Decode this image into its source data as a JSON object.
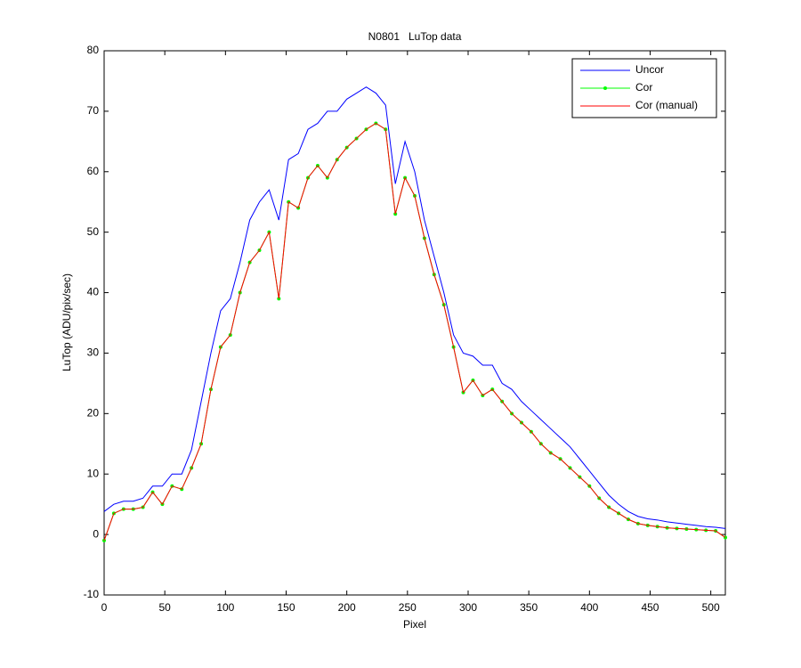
{
  "chart_data": {
    "type": "line",
    "title": "N0801   LuTop data",
    "x_label": "Pixel",
    "y_label": "LuTop (ADU/pix/sec)",
    "x": [
      0,
      8,
      16,
      24,
      32,
      40,
      48,
      56,
      64,
      72,
      80,
      88,
      96,
      104,
      112,
      120,
      128,
      136,
      144,
      152,
      160,
      168,
      176,
      184,
      192,
      200,
      208,
      216,
      224,
      232,
      240,
      248,
      256,
      264,
      272,
      280,
      288,
      296,
      304,
      312,
      320,
      328,
      336,
      344,
      352,
      360,
      368,
      376,
      384,
      392,
      400,
      408,
      416,
      424,
      432,
      440,
      448,
      456,
      464,
      472,
      480,
      488,
      496,
      504,
      512
    ],
    "series": [
      {
        "name": "Uncor",
        "color": "#0000ff",
        "marker": false,
        "values": [
          3.8,
          5,
          5.5,
          5.5,
          6,
          8,
          8,
          10,
          10,
          14,
          22,
          30,
          37,
          39,
          45,
          52,
          55,
          57,
          52,
          62,
          63,
          67,
          68,
          70,
          70,
          72,
          73,
          74,
          73,
          71,
          58,
          65,
          60,
          52,
          46,
          40,
          33,
          30,
          29.5,
          28,
          28,
          25,
          24,
          22,
          20.5,
          19,
          17.5,
          16,
          14.5,
          12.5,
          10.5,
          8.5,
          6.5,
          5,
          3.8,
          3,
          2.6,
          2.4,
          2.1,
          1.9,
          1.7,
          1.5,
          1.3,
          1.2,
          1.0
        ]
      },
      {
        "name": "Cor",
        "color": "#00ff00",
        "marker": true,
        "values": [
          -1,
          3.5,
          4.2,
          4.2,
          4.5,
          7,
          5,
          8,
          7.5,
          11,
          15,
          24,
          31,
          33,
          40,
          45,
          47,
          50,
          39,
          55,
          54,
          59,
          61,
          59,
          62,
          64,
          65.5,
          67,
          68,
          67,
          53,
          59,
          56,
          49,
          43,
          38,
          31,
          23.5,
          25.5,
          23,
          24,
          22,
          20,
          18.5,
          17,
          15,
          13.5,
          12.5,
          11,
          9.5,
          8,
          6,
          4.5,
          3.5,
          2.5,
          1.8,
          1.5,
          1.3,
          1.1,
          1,
          0.9,
          0.8,
          0.7,
          0.6,
          -0.5
        ]
      },
      {
        "name": "Cor (manual)",
        "color": "#ff0000",
        "marker": false,
        "values": [
          -1,
          3.5,
          4.2,
          4.2,
          4.5,
          7,
          5,
          8,
          7.5,
          11,
          15,
          24,
          31,
          33,
          40,
          45,
          47,
          50,
          39,
          55,
          54,
          59,
          61,
          59,
          62,
          64,
          65.5,
          67,
          68,
          67,
          53,
          59,
          56,
          49,
          43,
          38,
          31,
          23.5,
          25.5,
          23,
          24,
          22,
          20,
          18.5,
          17,
          15,
          13.5,
          12.5,
          11,
          9.5,
          8,
          6,
          4.5,
          3.5,
          2.5,
          1.8,
          1.5,
          1.3,
          1.1,
          1,
          0.9,
          0.8,
          0.7,
          0.6,
          -0.5
        ]
      }
    ],
    "xlim": [
      0,
      512
    ],
    "xticks": [
      0,
      50,
      100,
      150,
      200,
      250,
      300,
      350,
      400,
      450,
      500
    ],
    "ylim": [
      -10,
      80
    ],
    "yticks": [
      -10,
      0,
      10,
      20,
      30,
      40,
      50,
      60,
      70,
      80
    ],
    "grid": false,
    "legend": "northeast"
  }
}
